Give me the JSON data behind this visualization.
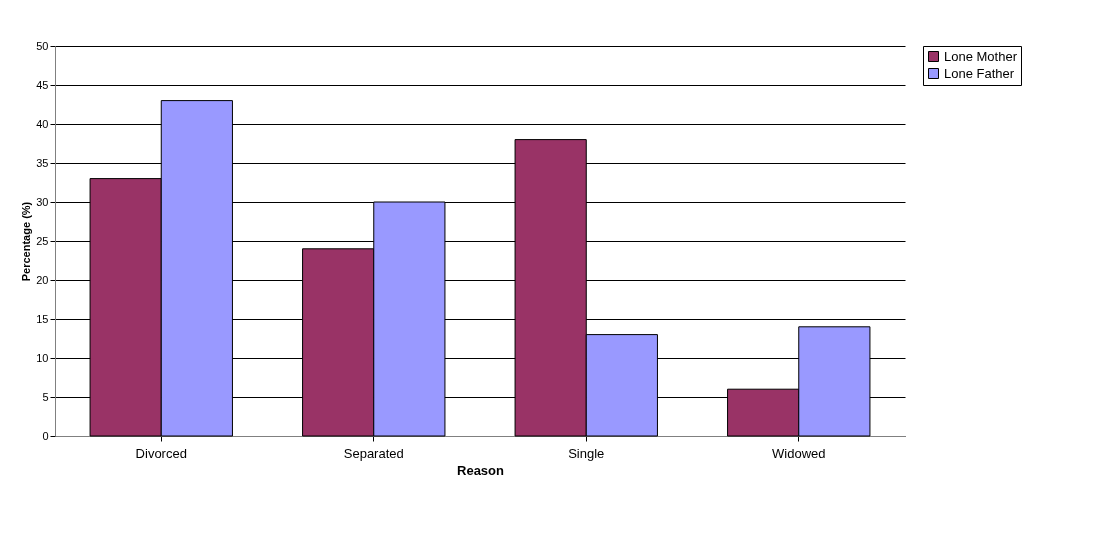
{
  "chart_data": {
    "type": "bar",
    "xlabel": "Reason",
    "ylabel": "Percentage (%)",
    "categories": [
      "Divorced",
      "Separated",
      "Single",
      "Widowed"
    ],
    "series": [
      {
        "name": "Lone Mother",
        "color": "#993366",
        "values": [
          33,
          24,
          38,
          6
        ]
      },
      {
        "name": "Lone Father",
        "color": "#9999ff",
        "values": [
          43,
          30,
          13,
          14
        ]
      }
    ],
    "ylim": [
      0,
      50
    ],
    "yticks": [
      0,
      5,
      10,
      15,
      20,
      25,
      30,
      35,
      40,
      45,
      50
    ],
    "grid": "y",
    "legend": "right"
  }
}
